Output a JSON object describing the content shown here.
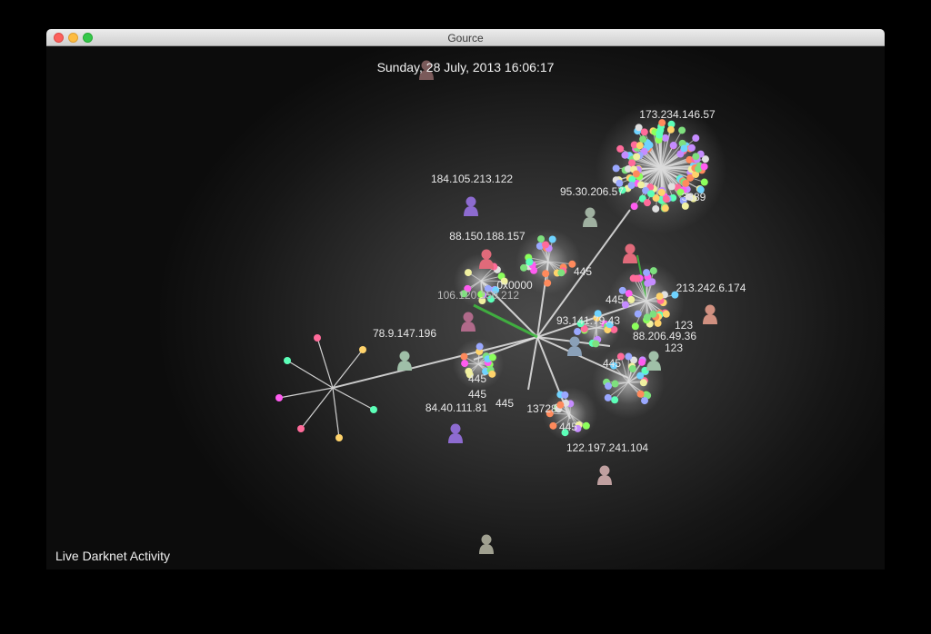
{
  "window": {
    "title": "Gource",
    "buttons": {
      "close": "close-button",
      "minimize": "minimize-button",
      "zoom": "zoom-button"
    }
  },
  "visualization": {
    "datetime": "Sunday, 28 July, 2013 16:06:17",
    "caption": "Live Darknet Activity",
    "ip_labels": [
      "173.234.146.57",
      "184.105.213.122",
      "95.30.206.57",
      "88.150.188.157",
      "106.120.150.212",
      "213.242.6.174",
      "93.141.79.43",
      "78.9.147.196",
      "88.206.49.36",
      "84.40.111.81",
      "122.197.241.104"
    ],
    "port_labels": [
      "445",
      "445",
      "445",
      "445",
      "445",
      "445",
      "445",
      "123",
      "123",
      "3389",
      "13728",
      "0x0000"
    ]
  }
}
